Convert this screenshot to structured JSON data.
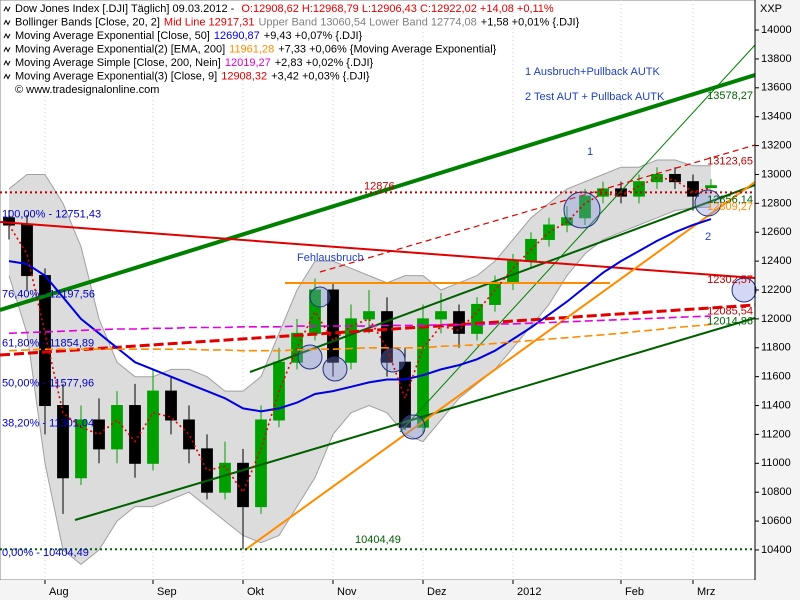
{
  "chart_data": {
    "type": "candlestick",
    "title": "Dow Jones Index [.DJI]  Täglich] 09.03.2012 - ",
    "title_ohlc": "O:12908,62 H:12968,79 L:12906,43 C:12922,02 +14,08 +0,11%",
    "source": "© www.tradesignalonline.com",
    "axis_unit": "XXP",
    "up_color": "#00a000",
    "down_color": "#000000",
    "categories": [
      null,
      null,
      "Aug",
      null,
      null,
      null,
      null,
      null,
      "Sep",
      null,
      null,
      null,
      null,
      "Okt",
      null,
      null,
      null,
      null,
      "Nov",
      null,
      null,
      null,
      null,
      "Dez",
      null,
      null,
      null,
      null,
      "2012",
      null,
      null,
      null,
      null,
      null,
      "Feb",
      null,
      null,
      null,
      "Mrz",
      null
    ],
    "open": [
      12700,
      12650,
      12300,
      11400,
      10900,
      11300,
      11100,
      11400,
      11000,
      11500,
      11300,
      11100,
      10800,
      11000,
      10700,
      11300,
      11700,
      11900,
      12200,
      11700,
      12000,
      12050,
      11700,
      11250,
      12000,
      12050,
      11900,
      12100,
      12250,
      12400,
      12550,
      12650,
      12700,
      12850,
      12900,
      12850,
      12950,
      13000,
      12950,
      12908.62
    ],
    "high": [
      12753,
      12720,
      12350,
      11550,
      11400,
      11450,
      11500,
      11550,
      11650,
      11600,
      11400,
      11200,
      11150,
      11100,
      11400,
      11800,
      12000,
      12280,
      12250,
      12100,
      12200,
      12150,
      11800,
      12100,
      12180,
      12100,
      12150,
      12300,
      12450,
      12600,
      12700,
      12780,
      12900,
      12950,
      12950,
      13000,
      13050,
      13050,
      13000,
      12968.79
    ],
    "low": [
      12550,
      12200,
      11200,
      10650,
      10850,
      11000,
      11000,
      10900,
      10950,
      11200,
      11000,
      10750,
      10750,
      10404.49,
      10650,
      11250,
      11650,
      11850,
      11600,
      11650,
      11900,
      11600,
      11230,
      11200,
      11900,
      11800,
      11850,
      12050,
      12200,
      12350,
      12500,
      12600,
      12650,
      12800,
      12800,
      12800,
      12900,
      12900,
      12750,
      12906.43
    ],
    "close": [
      12650,
      12300,
      11400,
      10900,
      11300,
      11100,
      11400,
      11000,
      11500,
      11300,
      11100,
      10800,
      11000,
      10700,
      11300,
      11700,
      11900,
      12200,
      11700,
      12000,
      12050,
      11700,
      11250,
      12000,
      12050,
      11900,
      12100,
      12250,
      12400,
      12550,
      12650,
      12700,
      12850,
      12900,
      12850,
      12950,
      13000,
      12950,
      12850,
      12922.02
    ],
    "series": [
      {
        "name": "Bollinger Bands [Close, 20, 2]",
        "kind": "band",
        "color": "#a0a0a0",
        "fill": "#dcdcdc",
        "upper": [
          12900,
          13000,
          13000,
          12800,
          12500,
          12000,
          11700,
          11600,
          11600,
          11650,
          11650,
          11600,
          11500,
          11500,
          11600,
          11900,
          12200,
          12400,
          12400,
          12350,
          12300,
          12250,
          12300,
          12300,
          12200,
          12250,
          12300,
          12400,
          12550,
          12700,
          12800,
          12900,
          12950,
          13000,
          13050,
          13050,
          13100,
          13100,
          13060,
          13060.54
        ],
        "lower": [
          12300,
          11900,
          11000,
          10400,
          10300,
          10400,
          10600,
          10700,
          10700,
          10750,
          10800,
          10700,
          10600,
          10500,
          10450,
          10500,
          10700,
          10900,
          11200,
          11350,
          11400,
          11350,
          11200,
          11150,
          11300,
          11450,
          11550,
          11650,
          11800,
          11950,
          12100,
          12300,
          12450,
          12550,
          12600,
          12650,
          12700,
          12750,
          12770,
          12774.08
        ],
        "legend": [
          {
            "text": "Mid Line 12917,31",
            "color": "#e00000"
          },
          {
            "text": "Upper Band 13060,54 Lower Band 12774,08",
            "color": "#808080"
          },
          {
            "text": "+1,58 +0,01% {.DJI}",
            "color": "#000000"
          }
        ]
      },
      {
        "name": "Moving Average Exponential [Close, 50]",
        "kind": "line",
        "style": "solid",
        "color": "#0000e0",
        "values": [
          12400,
          12380,
          12300,
          12150,
          12000,
          11900,
          11800,
          11700,
          11650,
          11600,
          11550,
          11500,
          11450,
          11380,
          11360,
          11380,
          11420,
          11480,
          11500,
          11530,
          11560,
          11580,
          11580,
          11610,
          11650,
          11680,
          11720,
          11780,
          11860,
          11940,
          12030,
          12120,
          12220,
          12320,
          12400,
          12470,
          12540,
          12600,
          12650,
          12690.87
        ],
        "legend": [
          {
            "text": "12690,87",
            "color": "#0000e0"
          },
          {
            "text": "+9,43 +0,07% {.DJI}",
            "color": "#000000"
          }
        ]
      },
      {
        "name": "Moving Average Exponential(2) [EMA, 200]",
        "kind": "line",
        "style": "dashed",
        "color": "#ff8c00",
        "values": [
          11780,
          11785,
          11790,
          11790,
          11790,
          11790,
          11790,
          11790,
          11790,
          11790,
          11790,
          11785,
          11785,
          11780,
          11780,
          11780,
          11785,
          11790,
          11790,
          11795,
          11800,
          11800,
          11800,
          11800,
          11810,
          11815,
          11820,
          11830,
          11840,
          11850,
          11860,
          11870,
          11880,
          11890,
          11900,
          11915,
          11925,
          11940,
          11950,
          11961.28
        ],
        "legend": [
          {
            "text": "11961,28",
            "color": "#ff8c00"
          },
          {
            "text": "+7,33 +0,06% {Moving Average Exponential}",
            "color": "#000000"
          }
        ]
      },
      {
        "name": "Moving Average Simple [Close, 200, Nein]",
        "kind": "line",
        "style": "dashed",
        "color": "#e000e0",
        "values": [
          11900,
          11905,
          11910,
          11915,
          11920,
          11925,
          11930,
          11930,
          11935,
          11935,
          11940,
          11940,
          11940,
          11945,
          11945,
          11945,
          11950,
          11950,
          11950,
          11950,
          11950,
          11955,
          11955,
          11955,
          11960,
          11960,
          11960,
          11965,
          11965,
          11970,
          11975,
          11980,
          11985,
          11990,
          11995,
          12000,
          12005,
          12010,
          12015,
          12019.27
        ],
        "legend": [
          {
            "text": "12019,27",
            "color": "#e000e0"
          },
          {
            "text": "+2,83 +0,02% {.DJI}",
            "color": "#000000"
          }
        ]
      },
      {
        "name": "Moving Average Exponential(3) [Close, 9]",
        "kind": "line",
        "style": "dotted",
        "color": "#e00000",
        "values": [
          12650,
          12450,
          11900,
          11350,
          11250,
          11200,
          11300,
          11150,
          11350,
          11320,
          11200,
          10950,
          10980,
          10800,
          11100,
          11500,
          11800,
          12050,
          11850,
          11950,
          12000,
          11800,
          11450,
          11800,
          11950,
          11920,
          12050,
          12200,
          12350,
          12480,
          12600,
          12670,
          12800,
          12870,
          12850,
          12920,
          12980,
          12960,
          12880,
          12908.32
        ],
        "legend": [
          {
            "text": "12908,32",
            "color": "#e00000"
          },
          {
            "text": "+3,42 +0,03% {.DJI}",
            "color": "#000000"
          }
        ]
      }
    ],
    "ylim": [
      10192,
      14208
    ],
    "yticks": [
      10400,
      10600,
      10800,
      11000,
      11200,
      11400,
      11600,
      11800,
      12000,
      12200,
      12400,
      12600,
      12800,
      13000,
      13200,
      13400,
      13600,
      13800,
      14000
    ],
    "levels": [
      {
        "value": 12876,
        "label": "12876",
        "color": "#c00000"
      },
      {
        "value": 10404.49,
        "label": "10404,49",
        "color": "#006000"
      }
    ],
    "fib_labels": [
      {
        "value": 12751.43,
        "label": "100,00% - 12751,43"
      },
      {
        "value": 12197.56,
        "label": "76,40% - 12197,56"
      },
      {
        "value": 11854.89,
        "label": "61,80% - 11854,89"
      },
      {
        "value": 11577.96,
        "label": "50,00% - 11577,96"
      },
      {
        "value": 11301.04,
        "label": "38,20% - 11301,04"
      },
      {
        "value": 10404.49,
        "label": "0,00% - 10404,49"
      }
    ],
    "right_labels": [
      {
        "value": 13578.27,
        "label": "13578,27",
        "color": "#006000"
      },
      {
        "value": 13123.65,
        "label": "13123,65",
        "color": "#c00000"
      },
      {
        "value": 12856.14,
        "label": "12856,14",
        "color": "#006000"
      },
      {
        "value": 12809.27,
        "label": "12809,27",
        "color": "#ff8c00"
      },
      {
        "value": 12302.57,
        "label": "12302,57",
        "color": "#c00000"
      },
      {
        "value": 12085.54,
        "label": "12085,54",
        "color": "#c00000"
      },
      {
        "value": 12014.86,
        "label": "12014,86",
        "color": "#006000"
      }
    ],
    "annotations": {
      "breakout": "1 Ausbruch+Pullback AUTK",
      "test": "2 Test AUT + Pullback AUTK",
      "false_breakout": "Fehlausbruch",
      "marker_1": "1",
      "marker_2": "2"
    }
  }
}
